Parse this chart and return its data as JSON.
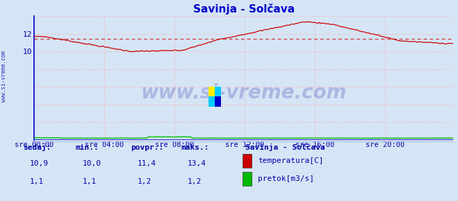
{
  "title": "Savinja - Solčava",
  "fig_bg_color": "#d5e5f5",
  "plot_bg_color": "#d5e5f5",
  "xlim": [
    0,
    287
  ],
  "ylim": [
    0,
    14
  ],
  "yticks": [
    10,
    12
  ],
  "xtick_labels": [
    "sre 00:00",
    "sre 04:00",
    "sre 08:00",
    "sre 12:00",
    "sre 16:00",
    "sre 20:00"
  ],
  "xtick_positions": [
    0,
    48,
    96,
    144,
    192,
    240
  ],
  "grid_color_h": "#ffaaaa",
  "grid_color_v": "#ffaaaa",
  "temp_color": "#cc0000",
  "flow_color": "#00bb00",
  "avg_color": "#cc0000",
  "avg_value": 11.4,
  "title_color": "#0000cc",
  "tick_color": "#0000aa",
  "label_color": "#0000aa",
  "watermark_color": "#3333aa",
  "watermark_alpha": 0.25,
  "watermark_text": "www.si-vreme.com",
  "sidebar_text": "www.si-vreme.com",
  "legend_title": "Savinja - Solčava",
  "legend_items": [
    "temperatura[C]",
    "pretok[m3/s]"
  ],
  "legend_colors": [
    "#cc0000",
    "#00bb00"
  ],
  "table_headers": [
    "sedaj:",
    "min.:",
    "povpr.:",
    "maks.:"
  ],
  "table_row1": [
    "10,9",
    "10,0",
    "11,4",
    "13,4"
  ],
  "table_row2": [
    "1,1",
    "1,1",
    "1,2",
    "1,2"
  ],
  "n_points": 288,
  "temp_min": 10.0,
  "temp_max": 13.4,
  "temp_start": 11.7,
  "temp_end": 10.9,
  "flow_y": 0.18
}
